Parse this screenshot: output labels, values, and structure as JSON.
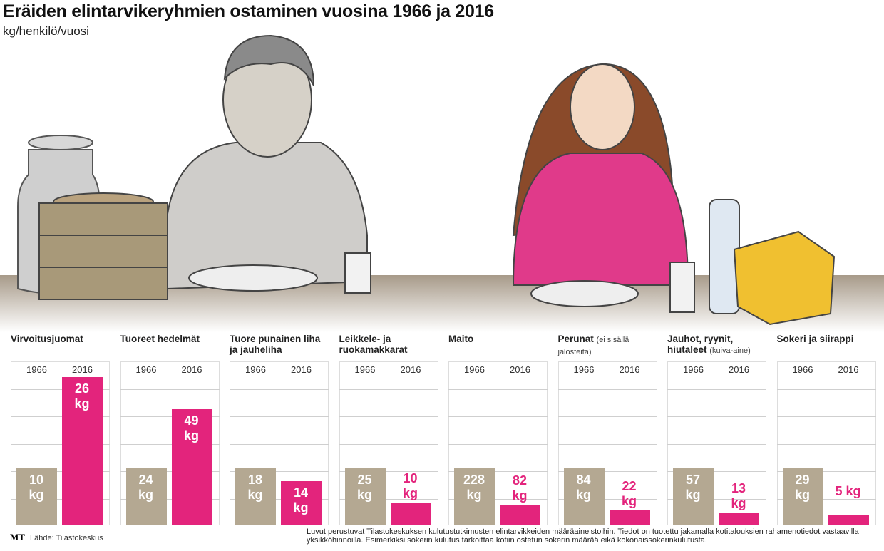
{
  "title": "Eräiden elintarvikeryhmien ostaminen vuosina 1966 ja 2016",
  "subtitle": "kg/henkilö/vuosi",
  "logo": "MT",
  "source": "Lähde: Tilastokeskus",
  "footnote": "Luvut perustuvat Tilastokeskuksen kulutustutkimusten elintarvikkeiden määräaineistoihin. Tiedot on tuotettu jakamalla kotitalouksien rahamenotiedot vastaavilla yksikköhinnoilla. Esimerkiksi sokerin kulutus tarkoittaa kotiin ostetun sokerin määrää eikä kokonaissokerinkulutusta.",
  "chart_data": [
    {
      "type": "bar",
      "title": "Virvoitusjuomat",
      "categories": [
        "1966",
        "2016"
      ],
      "values": [
        10,
        26
      ],
      "value_labels": [
        "10 kg",
        "26 kg"
      ],
      "colors": [
        "#b4a892",
        "#e3247c"
      ]
    },
    {
      "type": "bar",
      "title": "Tuoreet hedelmät",
      "categories": [
        "1966",
        "2016"
      ],
      "values": [
        24,
        49
      ],
      "value_labels": [
        "24 kg",
        "49 kg"
      ],
      "colors": [
        "#b4a892",
        "#e3247c"
      ]
    },
    {
      "type": "bar",
      "title": "Tuore punainen liha ja jauheliha",
      "categories": [
        "1966",
        "2016"
      ],
      "values": [
        18,
        14
      ],
      "value_labels": [
        "18 kg",
        "14 kg"
      ],
      "colors": [
        "#b4a892",
        "#e3247c"
      ]
    },
    {
      "type": "bar",
      "title": "Leikkele- ja ruokamakkarat",
      "categories": [
        "1966",
        "2016"
      ],
      "values": [
        25,
        10
      ],
      "value_labels": [
        "25 kg",
        "10 kg"
      ],
      "colors": [
        "#b4a892",
        "#e3247c"
      ]
    },
    {
      "type": "bar",
      "title": "Maito",
      "categories": [
        "1966",
        "2016"
      ],
      "values": [
        228,
        82
      ],
      "value_labels": [
        "228 kg",
        "82 kg"
      ],
      "colors": [
        "#b4a892",
        "#e3247c"
      ]
    },
    {
      "type": "bar",
      "title": "Perunat",
      "note": "(ei sisällä jalosteita)",
      "categories": [
        "1966",
        "2016"
      ],
      "values": [
        84,
        22
      ],
      "value_labels": [
        "84 kg",
        "22 kg"
      ],
      "colors": [
        "#b4a892",
        "#e3247c"
      ]
    },
    {
      "type": "bar",
      "title": "Jauhot, ryynit, hiutaleet",
      "note": "(kuiva-aine)",
      "categories": [
        "1966",
        "2016"
      ],
      "values": [
        57,
        13
      ],
      "value_labels": [
        "57 kg",
        "13 kg"
      ],
      "colors": [
        "#b4a892",
        "#e3247c"
      ]
    },
    {
      "type": "bar",
      "title": "Sokeri ja siirappi",
      "categories": [
        "1966",
        "2016"
      ],
      "values": [
        29,
        5
      ],
      "value_labels": [
        "29 kg",
        "5 kg"
      ],
      "colors": [
        "#b4a892",
        "#e3247c"
      ]
    }
  ]
}
